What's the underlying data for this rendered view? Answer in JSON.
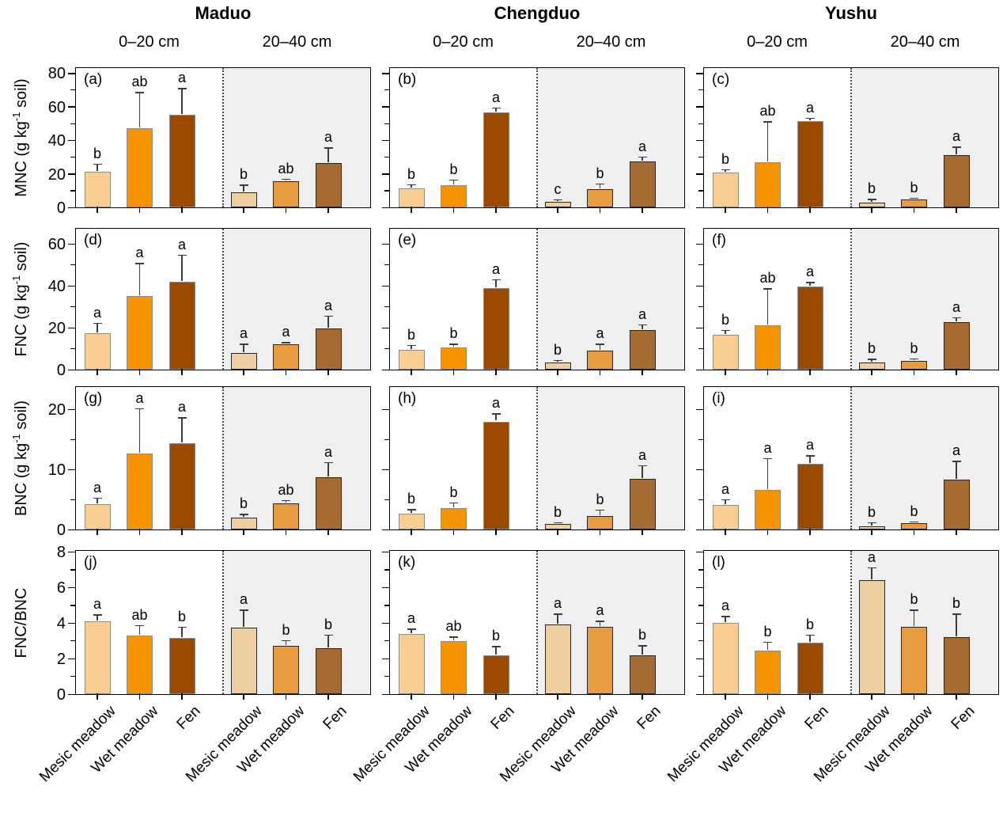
{
  "chart_data": {
    "type": "bar",
    "description": "Grouped bar chart figure, 12 panels: soil nitrogen fractions by site, depth and meadow type, with SD error bars and significance letters",
    "sites": [
      "Maduo",
      "Chengduo",
      "Yushu"
    ],
    "depths": [
      "0–20 cm",
      "20–40 cm"
    ],
    "categories": [
      "Mesic meadow",
      "Wet meadow",
      "Fen"
    ],
    "legend_position": "none",
    "grid": "off",
    "colors": {
      "bars_0_20": [
        "#FACD92",
        "#F59300",
        "#9A4A00"
      ],
      "bars_20_40": [
        "#EDCEA0",
        "#E89C42",
        "#A66B30"
      ],
      "bar_border_0_20": "#8C8C8C",
      "bar_border_20_40": "#262626",
      "deep_half_background": "#EFEFEF",
      "error_bar": "#3C3C3C",
      "axis": "#000000"
    },
    "rows": [
      {
        "measure": "MNC",
        "ylabel_pre": "MNC (g kg",
        "ylabel_sup": "-1",
        "ylabel_post": " soil)",
        "ylim": [
          0,
          84
        ],
        "yticks": [
          0,
          20,
          40,
          60,
          80
        ],
        "yminor": [
          10,
          30,
          50,
          70
        ],
        "panels": [
          {
            "label": "(a)",
            "site": "Maduo",
            "groups": [
              {
                "depth": "0–20 cm",
                "values": [
                  21.2,
                  47.2,
                  55.2
                ],
                "errors": [
                  4.5,
                  21.0,
                  15.5
                ],
                "letters": [
                  "b",
                  "ab",
                  "a"
                ]
              },
              {
                "depth": "20–40 cm",
                "values": [
                  9.0,
                  15.6,
                  26.4
                ],
                "errors": [
                  4.0,
                  1.0,
                  9.0
                ],
                "letters": [
                  "b",
                  "ab",
                  "a"
                ]
              }
            ]
          },
          {
            "label": "(b)",
            "site": "Chengduo",
            "groups": [
              {
                "depth": "0–20 cm",
                "values": [
                  11.3,
                  13.2,
                  56.6
                ],
                "errors": [
                  2.0,
                  3.0,
                  2.5
                ],
                "letters": [
                  "b",
                  "b",
                  "a"
                ]
              },
              {
                "depth": "20–40 cm",
                "values": [
                  3.3,
                  10.9,
                  27.4
                ],
                "errors": [
                  1.0,
                  3.0,
                  2.5
                ],
                "letters": [
                  "c",
                  "b",
                  "a"
                ]
              }
            ]
          },
          {
            "label": "(c)",
            "site": "Yushu",
            "groups": [
              {
                "depth": "0–20 cm",
                "values": [
                  20.8,
                  26.9,
                  51.5
                ],
                "errors": [
                  1.6,
                  24.0,
                  1.5
                ],
                "letters": [
                  "b",
                  "ab",
                  "a"
                ]
              },
              {
                "depth": "20–40 cm",
                "values": [
                  2.8,
                  4.7,
                  31.1
                ],
                "errors": [
                  1.9,
                  0.7,
                  4.8
                ],
                "letters": [
                  "b",
                  "b",
                  "a"
                ]
              }
            ]
          }
        ]
      },
      {
        "measure": "FNC",
        "ylabel_pre": "FNC (g kg",
        "ylabel_sup": "-1",
        "ylabel_post": " soil)",
        "ylim": [
          0,
          68
        ],
        "yticks": [
          0,
          20,
          40,
          60
        ],
        "yminor": [
          10,
          30,
          50
        ],
        "panels": [
          {
            "label": "(d)",
            "site": "Maduo",
            "groups": [
              {
                "depth": "0–20 cm",
                "values": [
                  17.5,
                  35.0,
                  42.0
                ],
                "errors": [
                  4.5,
                  15.5,
                  12.5
                ],
                "letters": [
                  "a",
                  "a",
                  "a"
                ]
              },
              {
                "depth": "20–40 cm",
                "values": [
                  8.0,
                  12.0,
                  19.5
                ],
                "errors": [
                  4.0,
                  0.8,
                  6.0
                ],
                "letters": [
                  "a",
                  "a",
                  "a"
                ]
              }
            ]
          },
          {
            "label": "(e)",
            "site": "Chengduo",
            "groups": [
              {
                "depth": "0–20 cm",
                "values": [
                  9.5,
                  10.6,
                  38.8
                ],
                "errors": [
                  2.0,
                  1.5,
                  4.0
                ],
                "letters": [
                  "b",
                  "b",
                  "a"
                ]
              },
              {
                "depth": "20–40 cm",
                "values": [
                  3.4,
                  9.1,
                  19.0
                ],
                "errors": [
                  0.8,
                  3.0,
                  2.2
                ],
                "letters": [
                  "b",
                  "a",
                  "a"
                ]
              }
            ]
          },
          {
            "label": "(f)",
            "site": "Yushu",
            "groups": [
              {
                "depth": "0–20 cm",
                "values": [
                  16.7,
                  21.0,
                  39.5
                ],
                "errors": [
                  2.0,
                  17.4,
                  2.0
                ],
                "letters": [
                  "b",
                  "ab",
                  "a"
                ]
              },
              {
                "depth": "20–40 cm",
                "values": [
                  3.4,
                  4.2,
                  22.8
                ],
                "errors": [
                  1.4,
                  0.9,
                  1.8
                ],
                "letters": [
                  "b",
                  "b",
                  "a"
                ]
              }
            ]
          }
        ]
      },
      {
        "measure": "BNC",
        "ylabel_pre": "BNC (g kg",
        "ylabel_sup": "-1",
        "ylabel_post": " soil)",
        "ylim": [
          0,
          24
        ],
        "yticks": [
          0,
          10,
          20
        ],
        "yminor": [
          5,
          15
        ],
        "panels": [
          {
            "label": "(g)",
            "site": "Maduo",
            "groups": [
              {
                "depth": "0–20 cm",
                "values": [
                  4.2,
                  12.7,
                  14.4
                ],
                "errors": [
                  1.0,
                  7.4,
                  4.2
                ],
                "letters": [
                  "a",
                  "a",
                  "a"
                ]
              },
              {
                "depth": "20–40 cm",
                "values": [
                  2.0,
                  4.4,
                  8.7
                ],
                "errors": [
                  0.5,
                  0.4,
                  2.4
                ],
                "letters": [
                  "b",
                  "ab",
                  "a"
                ]
              }
            ]
          },
          {
            "label": "(h)",
            "site": "Chengduo",
            "groups": [
              {
                "depth": "0–20 cm",
                "values": [
                  2.7,
                  3.5,
                  18.0
                ],
                "errors": [
                  0.6,
                  0.9,
                  1.2
                ],
                "letters": [
                  "b",
                  "b",
                  "a"
                ]
              },
              {
                "depth": "20–40 cm",
                "values": [
                  0.9,
                  2.3,
                  8.5
                ],
                "errors": [
                  0.2,
                  0.9,
                  2.1
                ],
                "letters": [
                  "b",
                  "b",
                  "a"
                ]
              }
            ]
          },
          {
            "label": "(i)",
            "site": "Yushu",
            "groups": [
              {
                "depth": "0–20 cm",
                "values": [
                  4.1,
                  6.6,
                  10.9
                ],
                "errors": [
                  0.8,
                  5.2,
                  1.3
                ],
                "letters": [
                  "a",
                  "a",
                  "a"
                ]
              },
              {
                "depth": "20–40 cm",
                "values": [
                  0.5,
                  1.0,
                  8.3
                ],
                "errors": [
                  0.6,
                  0.2,
                  3.0
                ],
                "letters": [
                  "b",
                  "b",
                  "a"
                ]
              }
            ]
          }
        ]
      },
      {
        "measure": "FNC/BNC",
        "ylabel_pre": "FNC/BNC",
        "ylabel_sup": "",
        "ylabel_post": "",
        "ylim": [
          0,
          8.15
        ],
        "yticks": [
          0,
          2,
          4,
          6,
          8
        ],
        "yminor": [
          1,
          3,
          5,
          7
        ],
        "panels": [
          {
            "label": "(j)",
            "site": "Maduo",
            "groups": [
              {
                "depth": "0–20 cm",
                "values": [
                  4.1,
                  3.3,
                  3.15
                ],
                "errors": [
                  0.35,
                  0.55,
                  0.6
                ],
                "letters": [
                  "a",
                  "ab",
                  "b"
                ]
              },
              {
                "depth": "20–40 cm",
                "values": [
                  3.75,
                  2.7,
                  2.6
                ],
                "errors": [
                  0.95,
                  0.3,
                  0.7
                ],
                "letters": [
                  "a",
                  "b",
                  "b"
                ]
              }
            ]
          },
          {
            "label": "(k)",
            "site": "Chengduo",
            "groups": [
              {
                "depth": "0–20 cm",
                "values": [
                  3.4,
                  3.0,
                  2.2
                ],
                "errors": [
                  0.25,
                  0.2,
                  0.45
                ],
                "letters": [
                  "a",
                  "ab",
                  "b"
                ]
              },
              {
                "depth": "20–40 cm",
                "values": [
                  3.9,
                  3.8,
                  2.2
                ],
                "errors": [
                  0.6,
                  0.3,
                  0.5
                ],
                "letters": [
                  "a",
                  "a",
                  "b"
                ]
              }
            ]
          },
          {
            "label": "(l)",
            "site": "Yushu",
            "groups": [
              {
                "depth": "0–20 cm",
                "values": [
                  4.0,
                  2.45,
                  2.9
                ],
                "errors": [
                  0.35,
                  0.45,
                  0.4
                ],
                "letters": [
                  "a",
                  "b",
                  "b"
                ]
              },
              {
                "depth": "20–40 cm",
                "values": [
                  6.4,
                  3.8,
                  3.2
                ],
                "errors": [
                  0.7,
                  0.9,
                  1.3
                ],
                "letters": [
                  "a",
                  "b",
                  "b"
                ]
              }
            ]
          }
        ]
      }
    ]
  }
}
